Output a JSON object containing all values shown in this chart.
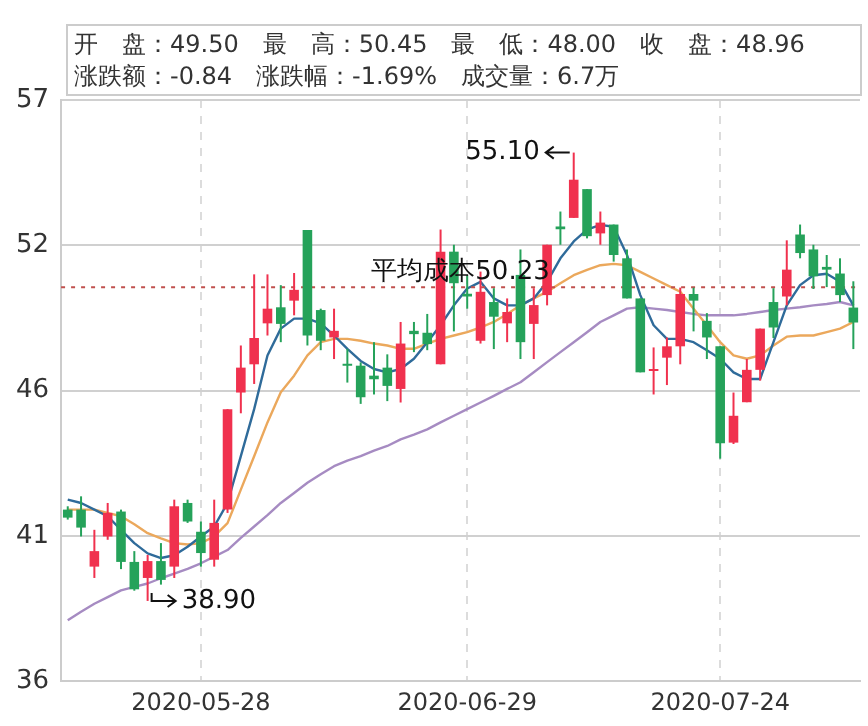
{
  "chart_data": {
    "type": "candlestick",
    "categories": [
      null,
      null,
      null,
      null,
      null,
      null,
      null,
      null,
      null,
      null,
      "2020-05-28",
      null,
      null,
      null,
      null,
      null,
      null,
      null,
      null,
      null,
      null,
      null,
      null,
      null,
      null,
      null,
      null,
      null,
      null,
      null,
      "2020-06-29",
      null,
      null,
      null,
      null,
      null,
      null,
      null,
      null,
      null,
      null,
      null,
      null,
      null,
      null,
      null,
      null,
      null,
      null,
      "2020-07-24",
      null,
      null,
      null,
      null,
      null,
      null,
      null,
      null,
      null,
      null
    ],
    "series": [
      {
        "ohlc": [
          [
            42.2,
            42.32,
            41.84,
            41.91
          ],
          [
            42.2,
            42.68,
            41.23,
            41.55
          ],
          [
            40.14,
            41.47,
            39.73,
            40.7
          ],
          [
            41.23,
            42.44,
            41.11,
            42.08
          ],
          [
            42.13,
            42.2,
            40.05,
            40.31
          ],
          [
            40.31,
            40.7,
            39.27,
            39.32
          ],
          [
            39.73,
            40.56,
            38.9,
            40.34
          ],
          [
            40.34,
            40.99,
            39.49,
            39.66
          ],
          [
            40.14,
            42.56,
            39.73,
            42.32
          ],
          [
            42.44,
            42.56,
            41.72,
            41.77
          ],
          [
            41.4,
            41.77,
            40.14,
            40.63
          ],
          [
            40.39,
            42.56,
            40.14,
            41.72
          ],
          [
            42.2,
            45.83,
            42.08,
            45.83
          ],
          [
            46.43,
            48.13,
            45.68,
            47.33
          ],
          [
            47.45,
            50.7,
            46.74,
            48.4
          ],
          [
            48.93,
            50.7,
            48.49,
            49.46
          ],
          [
            49.51,
            50.31,
            48.25,
            48.91
          ],
          [
            49.75,
            50.75,
            49.22,
            50.14
          ],
          [
            52.3,
            52.3,
            48.13,
            48.49
          ],
          [
            49.41,
            49.46,
            47.96,
            48.3
          ],
          [
            48.42,
            49.46,
            47.64,
            48.66
          ],
          [
            47.47,
            48.01,
            46.79,
            47.4
          ],
          [
            47.4,
            47.52,
            46.02,
            46.26
          ],
          [
            47.04,
            48.25,
            46.36,
            46.91
          ],
          [
            47.33,
            47.81,
            46.12,
            46.67
          ],
          [
            46.56,
            48.98,
            46.07,
            48.2
          ],
          [
            48.66,
            48.98,
            47.89,
            48.54
          ],
          [
            48.59,
            49.27,
            47.96,
            48.18
          ],
          [
            47.45,
            52.32,
            47.45,
            51.52
          ],
          [
            51.52,
            51.77,
            48.64,
            50.38
          ],
          [
            50.0,
            50.66,
            49.46,
            49.9
          ],
          [
            48.3,
            50.8,
            48.2,
            50.07
          ],
          [
            49.7,
            50.2,
            48.0,
            49.17
          ],
          [
            48.93,
            49.83,
            48.25,
            49.34
          ],
          [
            50.68,
            51.6,
            47.64,
            48.25
          ],
          [
            48.91,
            50.2,
            47.64,
            49.59
          ],
          [
            49.95,
            51.77,
            49.58,
            51.77
          ],
          [
            52.43,
            52.97,
            51.77,
            52.33
          ],
          [
            52.74,
            55.1,
            52.74,
            54.12
          ],
          [
            53.78,
            53.78,
            52.0,
            52.08
          ],
          [
            52.18,
            52.97,
            51.77,
            52.57
          ],
          [
            52.5,
            52.5,
            51.16,
            51.4
          ],
          [
            51.28,
            51.6,
            49.83,
            49.83
          ],
          [
            49.83,
            49.83,
            47.16,
            47.16
          ],
          [
            47.23,
            48.06,
            46.36,
            47.28
          ],
          [
            47.69,
            48.42,
            46.7,
            48.1
          ],
          [
            48.1,
            50.22,
            47.45,
            49.99
          ],
          [
            49.99,
            50.22,
            48.64,
            49.75
          ],
          [
            49.02,
            49.3,
            47.64,
            48.42
          ],
          [
            48.1,
            48.1,
            44.04,
            44.6
          ],
          [
            44.62,
            46.43,
            44.57,
            45.59
          ],
          [
            46.08,
            47.64,
            46.08,
            47.25
          ],
          [
            47.25,
            48.74,
            46.86,
            48.74
          ],
          [
            49.7,
            50.2,
            48.4,
            48.78
          ],
          [
            49.9,
            51.93,
            49.58,
            50.87
          ],
          [
            52.14,
            52.5,
            51.28,
            51.47
          ],
          [
            51.6,
            51.77,
            50.17,
            50.63
          ],
          [
            50.97,
            51.4,
            50.24,
            50.87
          ],
          [
            50.73,
            51.28,
            49.7,
            49.95
          ],
          [
            49.5,
            50.45,
            48.0,
            48.96
          ]
        ],
        "colors": [
          "#25a25a",
          "#25a25a",
          "#f0314e",
          "#f0314e",
          "#25a25a",
          "#25a25a",
          "#f0314e",
          "#25a25a",
          "#f0314e",
          "#25a25a",
          "#25a25a",
          "#f0314e",
          "#f0314e",
          "#f0314e",
          "#f0314e",
          "#f0314e",
          "#25a25a",
          "#f0314e",
          "#25a25a",
          "#25a25a",
          "#f0314e",
          "#25a25a",
          "#25a25a",
          "#25a25a",
          "#25a25a",
          "#f0314e",
          "#25a25a",
          "#25a25a",
          "#f0314e",
          "#25a25a",
          "#25a25a",
          "#f0314e",
          "#25a25a",
          "#f0314e",
          "#25a25a",
          "#f0314e",
          "#f0314e",
          "#25a25a",
          "#f0314e",
          "#25a25a",
          "#f0314e",
          "#25a25a",
          "#25a25a",
          "#25a25a",
          "#f0314e",
          "#f0314e",
          "#f0314e",
          "#25a25a",
          "#25a25a",
          "#25a25a",
          "#f0314e",
          "#f0314e",
          "#f0314e",
          "#25a25a",
          "#f0314e",
          "#25a25a",
          "#25a25a",
          "#25a25a",
          "#25a25a",
          "#25a25a"
        ]
      },
      {
        "type": "line",
        "color": "#2f6b9a",
        "values": [
          42.56,
          42.44,
          42.2,
          41.96,
          41.47,
          40.99,
          40.62,
          40.45,
          40.55,
          40.86,
          41.23,
          41.59,
          42.44,
          44.13,
          45.83,
          47.77,
          48.74,
          49.1,
          49.1,
          48.93,
          48.49,
          48.01,
          47.57,
          47.28,
          47.16,
          47.28,
          47.65,
          48.25,
          48.86,
          49.58,
          50.19,
          50.43,
          49.83,
          49.58,
          49.58,
          49.83,
          50.43,
          51.28,
          51.89,
          52.32,
          52.49,
          52.42,
          51.4,
          49.95,
          48.86,
          48.37,
          48.37,
          48.25,
          47.96,
          47.65,
          47.16,
          46.92,
          46.92,
          48.25,
          49.58,
          50.31,
          50.67,
          50.72,
          50.43,
          49.58
        ]
      },
      {
        "type": "line",
        "color": "#eba85c",
        "values": [
          42.2,
          42.2,
          42.2,
          42.08,
          41.96,
          41.67,
          41.35,
          41.16,
          40.99,
          40.94,
          40.99,
          41.23,
          41.71,
          42.92,
          44.13,
          45.35,
          46.44,
          47.04,
          47.77,
          48.25,
          48.37,
          48.37,
          48.3,
          48.2,
          48.13,
          48.01,
          48.01,
          48.2,
          48.37,
          48.49,
          48.61,
          48.78,
          48.98,
          49.27,
          49.58,
          49.83,
          50.07,
          50.38,
          50.67,
          50.86,
          51.03,
          51.08,
          51.03,
          50.79,
          50.55,
          50.31,
          50.07,
          49.46,
          48.86,
          48.25,
          47.77,
          47.65,
          47.77,
          48.13,
          48.45,
          48.49,
          48.49,
          48.61,
          48.74,
          48.98
        ]
      },
      {
        "type": "line",
        "color": "#a68bc2",
        "values": [
          38.2,
          38.51,
          38.8,
          39.04,
          39.28,
          39.41,
          39.53,
          39.72,
          39.89,
          40.06,
          40.26,
          40.5,
          40.74,
          41.18,
          41.59,
          42.0,
          42.44,
          42.8,
          43.17,
          43.48,
          43.77,
          43.97,
          44.13,
          44.33,
          44.5,
          44.74,
          44.91,
          45.1,
          45.35,
          45.59,
          45.83,
          46.07,
          46.31,
          46.56,
          46.8,
          47.16,
          47.53,
          47.89,
          48.25,
          48.61,
          48.98,
          49.22,
          49.46,
          49.51,
          49.46,
          49.41,
          49.34,
          49.27,
          49.22,
          49.22,
          49.22,
          49.27,
          49.34,
          49.41,
          49.46,
          49.51,
          49.58,
          49.63,
          49.7,
          49.58
        ]
      }
    ],
    "ylim": [
      36,
      57
    ],
    "yticks": [
      36,
      {
        "value": 41.25,
        "label": "41"
      },
      {
        "value": 46.5,
        "label": "46"
      },
      {
        "value": 51.75,
        "label": "52"
      },
      57
    ],
    "ref_lines": [
      {
        "axis": "y",
        "value": 50.23,
        "label": "平均成本50.23",
        "color": "#c0504d",
        "line_style": "dotted"
      }
    ],
    "annotations": [
      "开　盘：49.50　最　高：50.45　最　低：48.00　收　盘：48.96",
      "涨跌额：-0.84　涨跌幅：-1.69%　成交量：6.7万",
      "55.10",
      "38.90"
    ],
    "grid": true,
    "legend": false,
    "marker": "none",
    "line_style": "solid"
  }
}
